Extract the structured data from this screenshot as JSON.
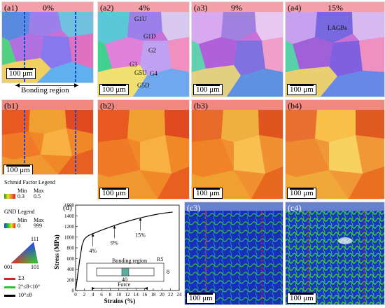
{
  "row_a": {
    "labels": [
      "(a1)",
      "(a2)",
      "(a3)",
      "(a4)"
    ],
    "strains": [
      "0%",
      "4%",
      "9%",
      "15%"
    ],
    "grain_labels": [
      "G1U",
      "G1D",
      "G2",
      "G3",
      "G5U",
      "G4",
      "G5D"
    ],
    "lagb_label": "LAGBs",
    "bonding_region": "Bonding region"
  },
  "row_b": {
    "labels": [
      "(b1)",
      "(b2)",
      "(b3)",
      "(b4)"
    ]
  },
  "row_c": {
    "labels": [
      "(c3)",
      "(c4)"
    ]
  },
  "scale_bar": "100 μm",
  "legends": {
    "schmid_title": "Schmid Factor Legend",
    "schmid_min_label": "Min",
    "schmid_max_label": "Max",
    "schmid_min": "0.3",
    "schmid_max": "0.5",
    "gnd_title": "GND Legend",
    "gnd_min_label": "Min",
    "gnd_max_label": "Max",
    "gnd_min": "0",
    "gnd_max": "999",
    "ipf": [
      "111",
      "001",
      "101"
    ],
    "boundaries": [
      "Σ3",
      "2°≤θ<10°",
      "10°≤θ"
    ],
    "boundary_colors": [
      "#e02020",
      "#22cc22",
      "#000000"
    ]
  },
  "chart": {
    "panel_label": "(d)",
    "inset_bonding": "Bonding region",
    "inset_force": "Force",
    "inset_dims": [
      "40",
      "R5",
      "8"
    ]
  },
  "chart_data": {
    "type": "line",
    "xlabel": "Strains (%)",
    "ylabel": "Stress (MPa)",
    "xlim": [
      0,
      24
    ],
    "ylim": [
      0,
      1600
    ],
    "xticks": [
      0,
      2,
      4,
      6,
      8,
      10,
      12,
      14,
      16,
      18,
      20,
      22,
      24
    ],
    "yticks": [
      0,
      200,
      400,
      600,
      800,
      1000,
      1200,
      1400,
      1600
    ],
    "series": [
      {
        "x": [
          0,
          0.5,
          1.0,
          1.5,
          2.0,
          2.5,
          3,
          4,
          6,
          8,
          10,
          12,
          14,
          16,
          18,
          20,
          22.5
        ],
        "y": [
          0,
          300,
          600,
          850,
          960,
          1000,
          1030,
          1065,
          1130,
          1190,
          1245,
          1295,
          1340,
          1380,
          1415,
          1445,
          1470
        ]
      }
    ],
    "annotations": [
      {
        "text": "4%",
        "x": 4,
        "y": 1065
      },
      {
        "text": "9%",
        "x": 9,
        "y": 1215
      },
      {
        "text": "15%",
        "x": 15,
        "y": 1360
      }
    ]
  }
}
